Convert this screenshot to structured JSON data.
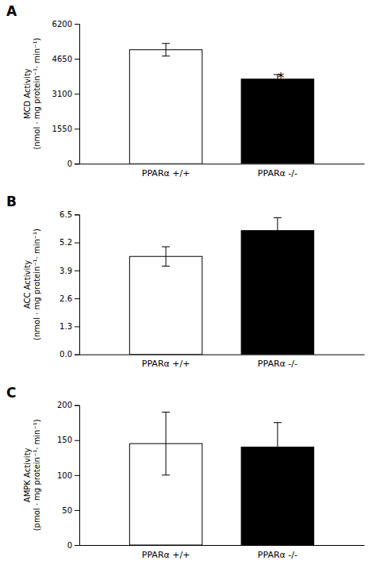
{
  "chart_data": [
    {
      "type": "bar",
      "title": "A",
      "ylabel": "MCD Activity\n(nmol · mg protein⁻¹· min⁻¹)",
      "categories": [
        "PPARα +/+",
        "PPARα -/-"
      ],
      "values": [
        5050,
        3750
      ],
      "errors": [
        280,
        200
      ],
      "colors": [
        "white",
        "black"
      ],
      "ylim": [
        0,
        6200
      ],
      "yticks": [
        0,
        1550,
        3100,
        4650,
        6200
      ],
      "annotations": [
        {
          "text": "*",
          "x": "PPARα -/-"
        }
      ]
    },
    {
      "type": "bar",
      "title": "B",
      "ylabel": "ACC Activity\n(nmol · mg protein⁻¹· min⁻¹)",
      "categories": [
        "PPARα +/+",
        "PPARα -/-"
      ],
      "values": [
        4.55,
        5.75
      ],
      "errors": [
        0.45,
        0.6
      ],
      "colors": [
        "white",
        "black"
      ],
      "ylim": [
        0,
        6.5
      ],
      "yticks": [
        {
          "value": 0,
          "label": "0.0"
        },
        1.3,
        2.6,
        3.9,
        5.2,
        6.5
      ]
    },
    {
      "type": "bar",
      "title": "C",
      "ylabel": "AMPK Activity\n(pmol · mg protein⁻¹· min⁻¹)",
      "categories": [
        "PPARα +/+",
        "PPARα -/-"
      ],
      "values": [
        145,
        140
      ],
      "errors": [
        45,
        35
      ],
      "colors": [
        "white",
        "black"
      ],
      "ylim": [
        0,
        200
      ],
      "yticks": [
        0,
        50,
        100,
        150,
        200
      ]
    }
  ]
}
